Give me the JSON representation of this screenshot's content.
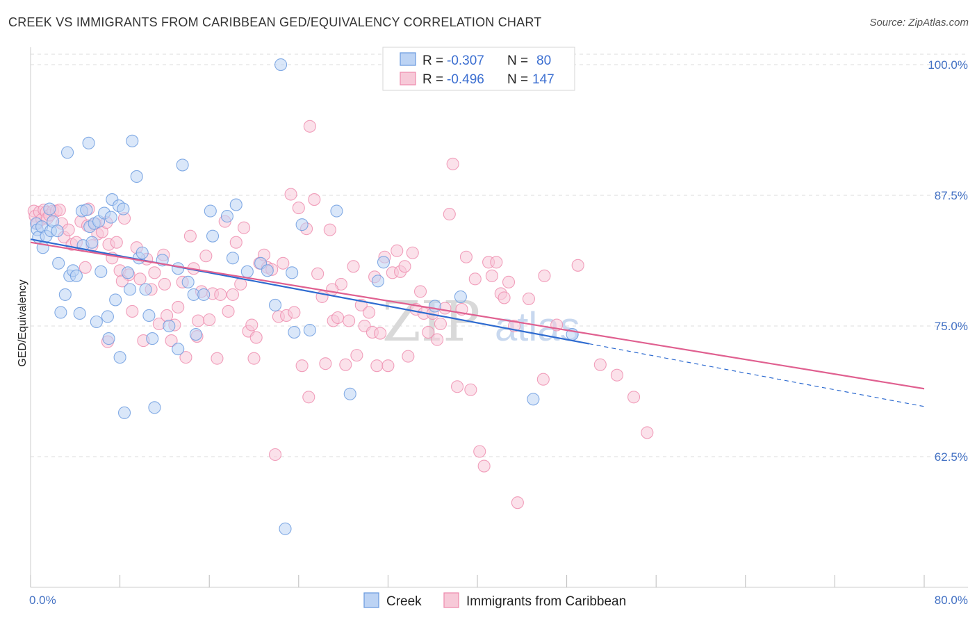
{
  "title": "CREEK VS IMMIGRANTS FROM CARIBBEAN GED/EQUIVALENCY CORRELATION CHART",
  "source": "Source: ZipAtlas.com",
  "colors": {
    "creek": "#6f9ee0",
    "creek_fill": "#bcd3f4",
    "creek_line": "#2e6bd0",
    "caribbean": "#ef8fb0",
    "caribbean_fill": "#f7c9d8",
    "caribbean_line": "#e06090",
    "tick_label": "#4472c4",
    "grid": "#dddddd"
  },
  "legend": {
    "rows": [
      {
        "r_label": "R =",
        "r_value": "-0.307",
        "n_label": "N =",
        "n_value": "80"
      },
      {
        "r_label": "R =",
        "r_value": "-0.496",
        "n_label": "N =",
        "n_value": "147"
      }
    ]
  },
  "bottom_legend": {
    "items": [
      "Creek",
      "Immigrants from Caribbean"
    ]
  },
  "watermark": {
    "zip": "ZIP",
    "atlas": "atlas"
  },
  "chart_data": {
    "type": "scatter",
    "xlabel": "",
    "ylabel": "GED/Equivalency",
    "xlim": [
      0,
      80
    ],
    "ylim": [
      50,
      101
    ],
    "x_tick_labels": [
      "0.0%",
      "80.0%"
    ],
    "y_ticks": [
      62.5,
      75.0,
      87.5,
      100.0
    ],
    "y_tick_labels": [
      "62.5%",
      "75.0%",
      "87.5%",
      "100.0%"
    ],
    "grid": true,
    "legend_position": "top-center",
    "series": [
      {
        "name": "Creek",
        "R": -0.307,
        "N": 80,
        "trend": {
          "x0": 0,
          "y0": 83.3,
          "x1": 50,
          "y1": 73.3,
          "dashed_to_x": 80,
          "dashed_to_y": 67.3
        },
        "points": [
          [
            0.5,
            84.8
          ],
          [
            0.6,
            84.2
          ],
          [
            0.7,
            83.5
          ],
          [
            1.0,
            84.5
          ],
          [
            1.1,
            82.5
          ],
          [
            1.4,
            83.6
          ],
          [
            1.7,
            86.2
          ],
          [
            1.8,
            84.1
          ],
          [
            2.0,
            85.0
          ],
          [
            2.4,
            84.1
          ],
          [
            2.5,
            81.0
          ],
          [
            2.7,
            76.3
          ],
          [
            3.1,
            78.0
          ],
          [
            3.3,
            91.6
          ],
          [
            3.5,
            79.8
          ],
          [
            3.8,
            80.3
          ],
          [
            4.1,
            79.8
          ],
          [
            4.4,
            76.2
          ],
          [
            4.6,
            86.0
          ],
          [
            4.7,
            82.7
          ],
          [
            5.0,
            86.1
          ],
          [
            5.2,
            92.5
          ],
          [
            5.3,
            84.5
          ],
          [
            5.5,
            83.0
          ],
          [
            5.7,
            84.8
          ],
          [
            5.9,
            75.4
          ],
          [
            6.1,
            85.0
          ],
          [
            6.3,
            80.2
          ],
          [
            6.6,
            85.8
          ],
          [
            6.9,
            75.9
          ],
          [
            7.2,
            85.4
          ],
          [
            7.3,
            87.1
          ],
          [
            7.6,
            77.5
          ],
          [
            7.9,
            86.5
          ],
          [
            8.0,
            72.0
          ],
          [
            8.3,
            86.2
          ],
          [
            8.4,
            66.7
          ],
          [
            8.7,
            80.1
          ],
          [
            8.9,
            78.5
          ],
          [
            9.1,
            92.7
          ],
          [
            9.5,
            89.3
          ],
          [
            9.7,
            81.5
          ],
          [
            10.0,
            82.0
          ],
          [
            10.3,
            78.5
          ],
          [
            10.6,
            76.0
          ],
          [
            10.9,
            73.8
          ],
          [
            11.1,
            67.2
          ],
          [
            11.8,
            81.3
          ],
          [
            12.4,
            75.0
          ],
          [
            13.2,
            72.8
          ],
          [
            13.6,
            90.4
          ],
          [
            13.2,
            80.5
          ],
          [
            14.1,
            79.2
          ],
          [
            14.6,
            78.0
          ],
          [
            14.8,
            74.2
          ],
          [
            16.3,
            83.6
          ],
          [
            16.1,
            86.0
          ],
          [
            17.6,
            85.5
          ],
          [
            18.1,
            81.5
          ],
          [
            18.4,
            86.6
          ],
          [
            19.4,
            80.2
          ],
          [
            20.6,
            81.0
          ],
          [
            21.2,
            80.3
          ],
          [
            21.9,
            77.0
          ],
          [
            22.4,
            100.0
          ],
          [
            22.8,
            55.6
          ],
          [
            23.4,
            80.1
          ],
          [
            23.6,
            74.4
          ],
          [
            24.3,
            84.7
          ],
          [
            25.0,
            74.6
          ],
          [
            27.4,
            86.0
          ],
          [
            28.6,
            68.5
          ],
          [
            31.1,
            79.3
          ],
          [
            31.6,
            81.1
          ],
          [
            36.2,
            76.9
          ],
          [
            38.5,
            77.8
          ],
          [
            45.0,
            68.0
          ],
          [
            48.5,
            74.2
          ],
          [
            7.0,
            73.8
          ],
          [
            15.5,
            78.0
          ]
        ]
      },
      {
        "name": "Immigrants from Caribbean",
        "R": -0.496,
        "N": 147,
        "trend": {
          "x0": 0,
          "y0": 83.0,
          "x1": 80,
          "y1": 69.0
        },
        "points": [
          [
            0.3,
            86.0
          ],
          [
            0.4,
            85.5
          ],
          [
            0.6,
            84.8
          ],
          [
            0.8,
            85.9
          ],
          [
            1.0,
            85.2
          ],
          [
            1.2,
            86.1
          ],
          [
            1.4,
            85.9
          ],
          [
            1.5,
            85.3
          ],
          [
            1.7,
            85.6
          ],
          [
            2.0,
            86.0
          ],
          [
            2.3,
            86.0
          ],
          [
            2.6,
            86.1
          ],
          [
            2.8,
            84.8
          ],
          [
            3.0,
            83.5
          ],
          [
            3.4,
            84.2
          ],
          [
            3.7,
            82.8
          ],
          [
            4.1,
            83.0
          ],
          [
            4.5,
            85.0
          ],
          [
            4.9,
            80.6
          ],
          [
            5.1,
            84.6
          ],
          [
            5.5,
            82.7
          ],
          [
            5.8,
            84.8
          ],
          [
            6.0,
            83.8
          ],
          [
            6.4,
            84.0
          ],
          [
            6.8,
            84.9
          ],
          [
            7.0,
            82.8
          ],
          [
            7.3,
            81.5
          ],
          [
            7.7,
            83.0
          ],
          [
            8.0,
            80.3
          ],
          [
            8.4,
            85.3
          ],
          [
            8.8,
            79.9
          ],
          [
            9.1,
            76.4
          ],
          [
            9.5,
            82.5
          ],
          [
            9.8,
            79.5
          ],
          [
            10.1,
            73.6
          ],
          [
            10.4,
            81.4
          ],
          [
            10.8,
            78.5
          ],
          [
            11.1,
            80.1
          ],
          [
            11.5,
            75.2
          ],
          [
            11.9,
            81.8
          ],
          [
            12.2,
            76.0
          ],
          [
            12.6,
            73.6
          ],
          [
            12.9,
            75.1
          ],
          [
            13.2,
            76.8
          ],
          [
            13.6,
            79.2
          ],
          [
            13.9,
            72.0
          ],
          [
            14.3,
            83.6
          ],
          [
            14.6,
            80.5
          ],
          [
            15.0,
            75.5
          ],
          [
            15.3,
            78.3
          ],
          [
            15.7,
            81.7
          ],
          [
            16.0,
            75.6
          ],
          [
            16.3,
            78.1
          ],
          [
            16.7,
            71.9
          ],
          [
            17.0,
            78.0
          ],
          [
            17.4,
            85.0
          ],
          [
            17.7,
            76.4
          ],
          [
            18.1,
            78.0
          ],
          [
            18.4,
            83.0
          ],
          [
            18.8,
            79.0
          ],
          [
            19.1,
            84.4
          ],
          [
            19.5,
            74.5
          ],
          [
            19.8,
            75.1
          ],
          [
            20.2,
            73.9
          ],
          [
            20.5,
            81.0
          ],
          [
            20.9,
            81.8
          ],
          [
            21.2,
            80.6
          ],
          [
            21.6,
            80.4
          ],
          [
            21.9,
            62.7
          ],
          [
            22.2,
            75.9
          ],
          [
            22.6,
            81.0
          ],
          [
            22.9,
            76.0
          ],
          [
            23.3,
            87.6
          ],
          [
            23.6,
            76.3
          ],
          [
            24.0,
            86.3
          ],
          [
            24.3,
            71.2
          ],
          [
            24.7,
            84.3
          ],
          [
            25.0,
            94.1
          ],
          [
            25.4,
            87.1
          ],
          [
            25.7,
            80.0
          ],
          [
            26.1,
            77.8
          ],
          [
            26.4,
            71.4
          ],
          [
            26.8,
            84.2
          ],
          [
            27.1,
            75.5
          ],
          [
            27.5,
            75.8
          ],
          [
            27.8,
            79.0
          ],
          [
            28.2,
            71.3
          ],
          [
            28.5,
            75.5
          ],
          [
            28.9,
            80.7
          ],
          [
            29.2,
            72.2
          ],
          [
            29.6,
            77.0
          ],
          [
            29.9,
            75.0
          ],
          [
            30.3,
            76.3
          ],
          [
            30.6,
            74.4
          ],
          [
            31.0,
            71.2
          ],
          [
            31.3,
            74.3
          ],
          [
            31.7,
            81.6
          ],
          [
            32.0,
            71.2
          ],
          [
            32.4,
            80.1
          ],
          [
            32.8,
            82.2
          ],
          [
            33.1,
            80.2
          ],
          [
            33.5,
            80.7
          ],
          [
            33.8,
            72.1
          ],
          [
            34.2,
            82.0
          ],
          [
            34.5,
            76.6
          ],
          [
            34.9,
            78.3
          ],
          [
            35.2,
            76.2
          ],
          [
            35.6,
            74.4
          ],
          [
            36.0,
            76.2
          ],
          [
            36.4,
            73.7
          ],
          [
            36.7,
            75.2
          ],
          [
            37.1,
            76.7
          ],
          [
            37.5,
            85.7
          ],
          [
            37.8,
            90.5
          ],
          [
            38.2,
            69.2
          ],
          [
            38.6,
            76.6
          ],
          [
            39.0,
            81.6
          ],
          [
            39.4,
            68.9
          ],
          [
            39.8,
            79.5
          ],
          [
            40.2,
            63.0
          ],
          [
            40.6,
            61.6
          ],
          [
            41.0,
            81.1
          ],
          [
            41.3,
            79.8
          ],
          [
            41.7,
            81.1
          ],
          [
            42.1,
            78.1
          ],
          [
            42.4,
            77.7
          ],
          [
            42.8,
            79.2
          ],
          [
            43.3,
            75.0
          ],
          [
            43.6,
            58.1
          ],
          [
            44.6,
            77.6
          ],
          [
            45.9,
            69.9
          ],
          [
            46.0,
            79.8
          ],
          [
            47.1,
            75.1
          ],
          [
            49.0,
            80.8
          ],
          [
            51.0,
            71.3
          ],
          [
            52.5,
            70.3
          ],
          [
            54.0,
            68.2
          ],
          [
            55.2,
            64.8
          ],
          [
            5.2,
            86.2
          ],
          [
            6.9,
            73.5
          ],
          [
            8.2,
            79.3
          ],
          [
            12.0,
            79.0
          ],
          [
            14.9,
            74.0
          ],
          [
            20.0,
            71.9
          ],
          [
            24.9,
            68.2
          ],
          [
            27.0,
            78.5
          ],
          [
            30.8,
            79.7
          ]
        ]
      }
    ]
  }
}
